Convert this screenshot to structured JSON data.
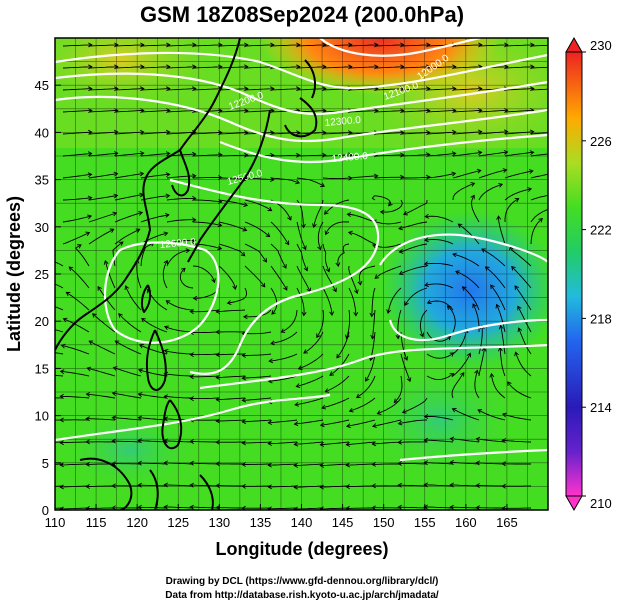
{
  "title": "GSM 18Z08Sep2024 (200.0hPa)",
  "x_axis": {
    "label": "Longitude (degrees)",
    "range": [
      110,
      170
    ],
    "ticks": [
      "110",
      "115",
      "120",
      "125",
      "130",
      "135",
      "140",
      "145",
      "150",
      "155",
      "160",
      "165"
    ]
  },
  "y_axis": {
    "label": "Latitude  (degrees)",
    "range": [
      0,
      50
    ],
    "ticks": [
      "0",
      "5",
      "10",
      "15",
      "20",
      "25",
      "30",
      "35",
      "40",
      "45"
    ]
  },
  "colorbar": {
    "range": [
      210,
      230
    ],
    "ticks": [
      "210",
      "214",
      "218",
      "222",
      "226",
      "230"
    ],
    "colors": [
      "#ff33cc",
      "#2a1ab8",
      "#2299ee",
      "#22cc22",
      "#ffaa00",
      "#ee2222"
    ]
  },
  "contour_labels": [
    "12300.0",
    "12400.0",
    "12500.0",
    "12600.0",
    "12200.0",
    "12100.0",
    "12000.0"
  ],
  "credits": {
    "line1": "Drawing by DCL (https://www.gfd-dennou.org/library/dcl/)",
    "line2": "Data from http://database.rish.kyoto-u.ac.jp/arch/jmadata/"
  },
  "colors": {
    "background_field": "#44dd22",
    "contour": "#ffffff",
    "coastline": "#000000",
    "frame": "#000000"
  }
}
